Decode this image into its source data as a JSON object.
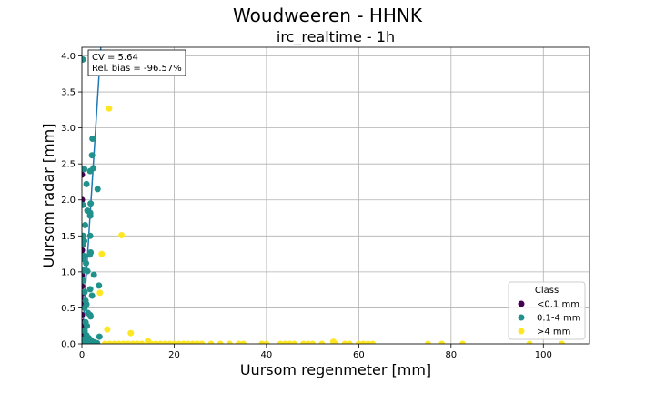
{
  "chart_data": {
    "type": "scatter",
    "suptitle": "Woudweeren - HHNK",
    "title": "irc_realtime - 1h",
    "xlabel": "Uursom regenmeter [mm]",
    "ylabel": "Uursom radar [mm]",
    "xlim": [
      0,
      110
    ],
    "ylim": [
      0,
      4.12
    ],
    "x_ticks": [
      0,
      20,
      40,
      60,
      80,
      100
    ],
    "y_ticks": [
      0.0,
      0.5,
      1.0,
      1.5,
      2.0,
      2.5,
      3.0,
      3.5,
      4.0
    ],
    "grid": true,
    "annotation": [
      "CV = 5.64",
      "Rel. bias = -96.57%"
    ],
    "legend": {
      "title": "Class",
      "position": "lower-right",
      "entries": [
        {
          "label": "<0.1 mm",
          "color": "#440154"
        },
        {
          "label": "0.1-4 mm",
          "color": "#21918c"
        },
        {
          "label": ">4 mm",
          "color": "#fde725"
        }
      ]
    },
    "fit_line": {
      "color": "#1f77b4",
      "points": [
        [
          0.0,
          0.0
        ],
        [
          4.1,
          4.12
        ]
      ]
    },
    "series": [
      {
        "name": "<0.1 mm",
        "color": "#440154",
        "points": [
          [
            0,
            2.35
          ],
          [
            0,
            2.0
          ],
          [
            0,
            1.5
          ],
          [
            0,
            1.3
          ],
          [
            0,
            0.95
          ],
          [
            0,
            0.8
          ],
          [
            0,
            0.7
          ],
          [
            0,
            0.55
          ],
          [
            0,
            0.4
          ],
          [
            0,
            0.3
          ],
          [
            0,
            0.2
          ],
          [
            0,
            0.12
          ],
          [
            0,
            0.05
          ],
          [
            0,
            0.0
          ],
          [
            0.05,
            0.25
          ],
          [
            0.05,
            0.6
          ]
        ]
      },
      {
        "name": "0.1-4 mm",
        "color": "#21918c",
        "points": [
          [
            0.2,
            3.95
          ],
          [
            2.3,
            2.85
          ],
          [
            2.2,
            2.62
          ],
          [
            0.5,
            2.43
          ],
          [
            2.5,
            2.44
          ],
          [
            1.8,
            2.4
          ],
          [
            3.4,
            2.15
          ],
          [
            1.0,
            2.22
          ],
          [
            1.9,
            1.95
          ],
          [
            0.2,
            1.93
          ],
          [
            1.2,
            1.85
          ],
          [
            1.8,
            1.82
          ],
          [
            1.8,
            1.78
          ],
          [
            0.7,
            1.65
          ],
          [
            0.3,
            1.5
          ],
          [
            1.8,
            1.5
          ],
          [
            0.5,
            1.43
          ],
          [
            0.3,
            1.38
          ],
          [
            1.9,
            1.27
          ],
          [
            1.7,
            1.24
          ],
          [
            0.5,
            1.22
          ],
          [
            0.2,
            1.18
          ],
          [
            0.9,
            1.12
          ],
          [
            0.4,
            1.02
          ],
          [
            1.2,
            1.01
          ],
          [
            2.6,
            0.96
          ],
          [
            0.3,
            0.88
          ],
          [
            3.7,
            0.81
          ],
          [
            1.8,
            0.76
          ],
          [
            0.6,
            0.72
          ],
          [
            2.2,
            0.67
          ],
          [
            0.8,
            0.6
          ],
          [
            1.0,
            0.55
          ],
          [
            0.6,
            0.5
          ],
          [
            1.3,
            0.43
          ],
          [
            1.8,
            0.4
          ],
          [
            1.9,
            0.38
          ],
          [
            0.8,
            0.3
          ],
          [
            1.1,
            0.25
          ],
          [
            0.6,
            0.18
          ],
          [
            1.0,
            0.12
          ],
          [
            3.8,
            0.1
          ],
          [
            1.5,
            0.08
          ],
          [
            0.3,
            0.06
          ],
          [
            2.0,
            0.05
          ],
          [
            1.4,
            0.03
          ],
          [
            0.8,
            0.02
          ],
          [
            2.8,
            0.02
          ],
          [
            3.3,
            0.01
          ],
          [
            0.5,
            0.0
          ],
          [
            1.2,
            0.0
          ],
          [
            2.5,
            0.0
          ],
          [
            3.0,
            0.0
          ]
        ]
      },
      {
        "name": ">4 mm",
        "color": "#fde725",
        "points": [
          [
            5.9,
            3.27
          ],
          [
            8.6,
            1.51
          ],
          [
            4.3,
            1.25
          ],
          [
            3.9,
            0.71
          ],
          [
            5.5,
            0.2
          ],
          [
            10.6,
            0.15
          ],
          [
            14.3,
            0.04
          ],
          [
            54.5,
            0.03
          ],
          [
            5,
            0.0
          ],
          [
            6,
            0.0
          ],
          [
            7,
            0.0
          ],
          [
            8,
            0.0
          ],
          [
            9,
            0.0
          ],
          [
            10,
            0.0
          ],
          [
            11,
            0.0
          ],
          [
            12,
            0.0
          ],
          [
            13,
            0.0
          ],
          [
            15,
            0.0
          ],
          [
            16,
            0.0
          ],
          [
            17,
            0.0
          ],
          [
            18,
            0.0
          ],
          [
            19,
            0.0
          ],
          [
            20,
            0.0
          ],
          [
            21,
            0.0
          ],
          [
            22,
            0.0
          ],
          [
            23,
            0.0
          ],
          [
            24,
            0.0
          ],
          [
            25,
            0.0
          ],
          [
            26,
            0.0
          ],
          [
            28,
            0.0
          ],
          [
            30,
            0.0
          ],
          [
            32,
            0.0
          ],
          [
            34,
            0.0
          ],
          [
            35,
            0.0
          ],
          [
            39,
            0.0
          ],
          [
            40,
            0.0
          ],
          [
            43,
            0.0
          ],
          [
            44,
            0.0
          ],
          [
            45,
            0.0
          ],
          [
            46,
            0.0
          ],
          [
            48,
            0.0
          ],
          [
            49,
            0.0
          ],
          [
            50,
            0.0
          ],
          [
            52,
            0.0
          ],
          [
            55,
            0.0
          ],
          [
            57,
            0.0
          ],
          [
            58,
            0.0
          ],
          [
            60,
            0.0
          ],
          [
            61,
            0.0
          ],
          [
            62,
            0.0
          ],
          [
            63,
            0.0
          ],
          [
            75,
            0.0
          ],
          [
            78,
            0.0
          ],
          [
            82.5,
            0.0
          ],
          [
            97,
            0.0
          ],
          [
            104,
            0.0
          ]
        ]
      }
    ]
  }
}
